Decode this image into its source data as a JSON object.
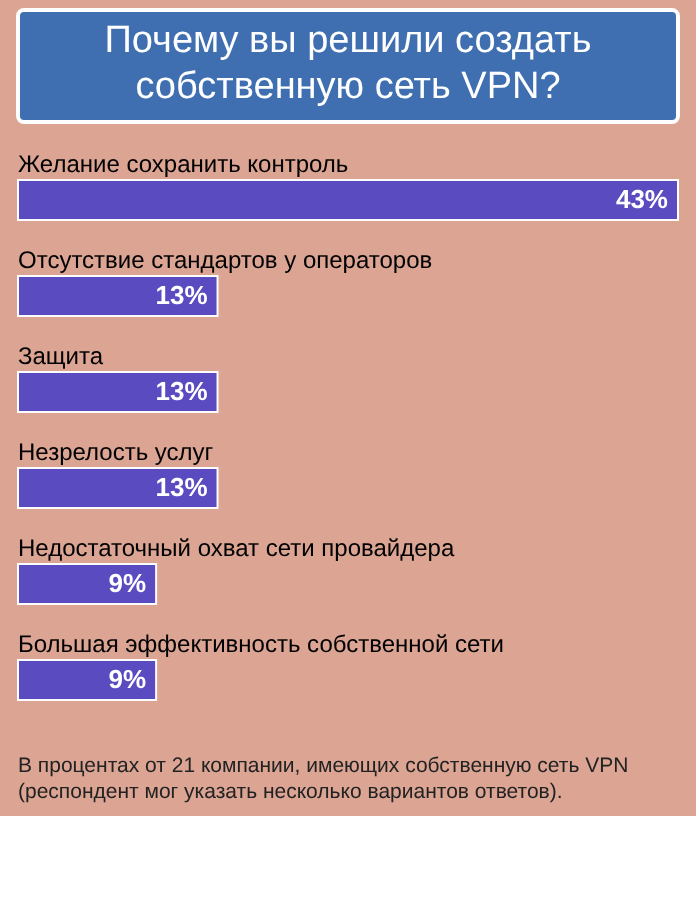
{
  "chart_data": {
    "type": "bar",
    "orientation": "horizontal",
    "title": "Почему вы решили создать собственную сеть VPN?",
    "categories": [
      "Желание сохранить контроль",
      "Отсутствие стандартов у операторов",
      "Защита",
      "Незрелость услуг",
      "Недостаточный охват сети провайдера",
      "Большая эффективность собственной сети"
    ],
    "values": [
      43,
      13,
      13,
      13,
      9,
      9
    ],
    "value_labels": [
      "43%",
      "13%",
      "13%",
      "13%",
      "9%",
      "9%"
    ],
    "color": "#5a4cc0",
    "tick_labels": false,
    "annotations": [
      "В процентах от 21 компании, имеющих собственную сеть VPN (респондент мог указать несколько вариантов ответов)."
    ]
  }
}
